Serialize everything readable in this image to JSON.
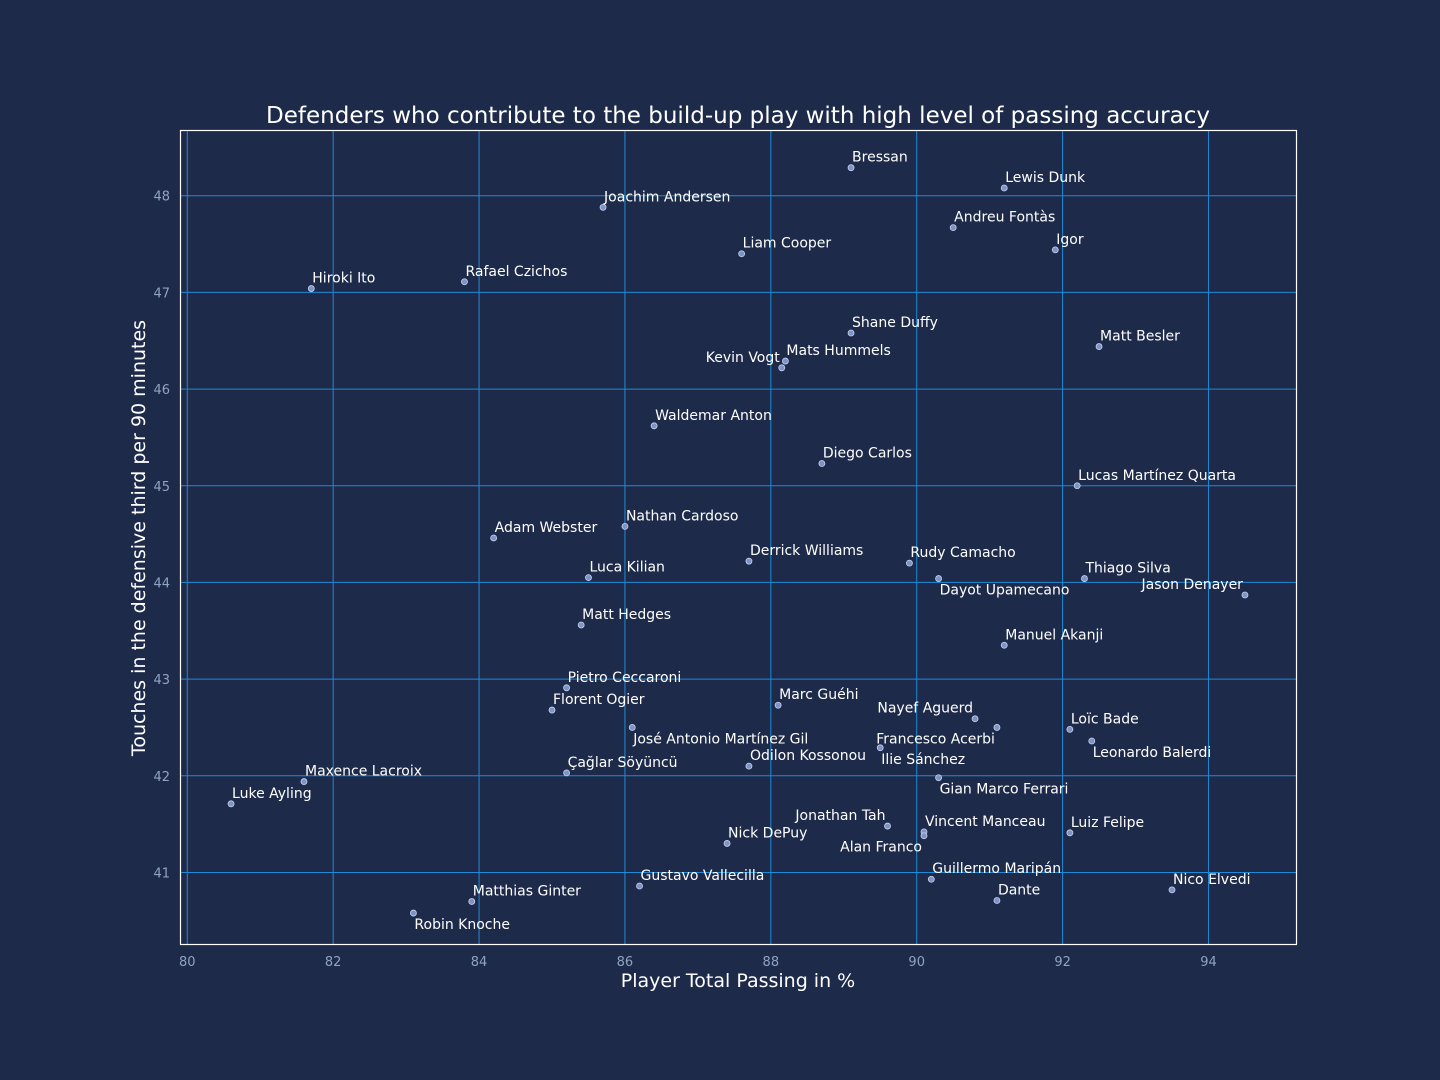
{
  "chart_data": {
    "type": "scatter",
    "title": "Defenders who contribute to the build-up play with high level of passing accuracy",
    "xlabel": "Player Total Passing in %",
    "ylabel": "Touches in the defensive third per 90 minutes",
    "xlim": [
      79.9,
      95.2
    ],
    "ylim": [
      40.26,
      48.68
    ],
    "grid": true,
    "xticks": [
      80,
      82,
      84,
      86,
      88,
      90,
      92,
      94
    ],
    "yticks": [
      41,
      42,
      43,
      44,
      45,
      46,
      47,
      48
    ],
    "colors": {
      "background": "#1d2a4a",
      "grid": "#1f8ad8",
      "point": "#7e93c7",
      "text": "#ffffff",
      "tick": "#8fa3c3"
    },
    "points": [
      {
        "name": "Bressan",
        "x": 89.1,
        "y": 48.29
      },
      {
        "name": "Lewis Dunk",
        "x": 91.2,
        "y": 48.08
      },
      {
        "name": "Joachim Andersen",
        "x": 85.7,
        "y": 47.88
      },
      {
        "name": "Andreu Fontàs",
        "x": 90.5,
        "y": 47.67
      },
      {
        "name": "Igor",
        "x": 91.9,
        "y": 47.44
      },
      {
        "name": "Liam Cooper",
        "x": 87.6,
        "y": 47.4
      },
      {
        "name": "Rafael Czichos",
        "x": 83.8,
        "y": 47.11
      },
      {
        "name": "Hiroki Ito",
        "x": 81.7,
        "y": 47.04
      },
      {
        "name": "Shane Duffy",
        "x": 89.1,
        "y": 46.58
      },
      {
        "name": "Matt Besler",
        "x": 92.5,
        "y": 46.44
      },
      {
        "name": "Mats Hummels",
        "x": 88.2,
        "y": 46.29
      },
      {
        "name": "Kevin Vogt",
        "x": 88.15,
        "y": 46.22,
        "anchor": "end"
      },
      {
        "name": "Waldemar Anton",
        "x": 86.4,
        "y": 45.62
      },
      {
        "name": "Diego Carlos",
        "x": 88.7,
        "y": 45.23
      },
      {
        "name": "Lucas Martínez Quarta",
        "x": 92.2,
        "y": 45.0
      },
      {
        "name": "Nathan Cardoso",
        "x": 86.0,
        "y": 44.58
      },
      {
        "name": "Adam Webster",
        "x": 84.2,
        "y": 44.46
      },
      {
        "name": "Derrick Williams",
        "x": 87.7,
        "y": 44.22
      },
      {
        "name": "Rudy Camacho",
        "x": 89.9,
        "y": 44.2
      },
      {
        "name": "Luca Kilian",
        "x": 85.5,
        "y": 44.05
      },
      {
        "name": "Dayot Upamecano",
        "x": 90.3,
        "y": 44.04,
        "below": true
      },
      {
        "name": "Thiago Silva",
        "x": 92.3,
        "y": 44.04
      },
      {
        "name": "Jason Denayer",
        "x": 94.5,
        "y": 43.87,
        "anchor": "end"
      },
      {
        "name": "Matt Hedges",
        "x": 85.4,
        "y": 43.56
      },
      {
        "name": "Manuel Akanji",
        "x": 91.2,
        "y": 43.35
      },
      {
        "name": "Pietro Ceccaroni",
        "x": 85.2,
        "y": 42.91
      },
      {
        "name": "Marc Guéhi",
        "x": 88.1,
        "y": 42.73
      },
      {
        "name": "Florent Ogier",
        "x": 85.0,
        "y": 42.68
      },
      {
        "name": "Nayef Aguerd",
        "x": 90.8,
        "y": 42.59,
        "anchor": "end"
      },
      {
        "name": "José Antonio Martínez Gil",
        "x": 86.1,
        "y": 42.5,
        "below": true
      },
      {
        "name": "Francesco Acerbi",
        "x": 91.1,
        "y": 42.5,
        "anchor": "end",
        "below": true
      },
      {
        "name": "Loïc Bade",
        "x": 92.1,
        "y": 42.48
      },
      {
        "name": "Leonardo Balerdi",
        "x": 92.4,
        "y": 42.36,
        "below": true
      },
      {
        "name": "Ilie Sánchez",
        "x": 89.5,
        "y": 42.29,
        "below": true
      },
      {
        "name": "Odilon Kossonou",
        "x": 87.7,
        "y": 42.1
      },
      {
        "name": "Çağlar Söyüncü",
        "x": 85.2,
        "y": 42.03
      },
      {
        "name": "Gian Marco Ferrari",
        "x": 90.3,
        "y": 41.98,
        "below": true
      },
      {
        "name": "Maxence Lacroix",
        "x": 81.6,
        "y": 41.94
      },
      {
        "name": "Luke Ayling",
        "x": 80.6,
        "y": 41.71
      },
      {
        "name": "Jonathan Tah",
        "x": 89.6,
        "y": 41.48,
        "anchor": "end"
      },
      {
        "name": "Vincent Manceau",
        "x": 90.1,
        "y": 41.42
      },
      {
        "name": "Alan Franco",
        "x": 90.1,
        "y": 41.38,
        "anchor": "end",
        "below": true
      },
      {
        "name": "Luiz Felipe",
        "x": 92.1,
        "y": 41.41
      },
      {
        "name": "Nick DePuy",
        "x": 87.4,
        "y": 41.3
      },
      {
        "name": "Guillermo Maripán",
        "x": 90.2,
        "y": 40.93
      },
      {
        "name": "Gustavo Vallecilla",
        "x": 86.2,
        "y": 40.86
      },
      {
        "name": "Nico Elvedi",
        "x": 93.5,
        "y": 40.82
      },
      {
        "name": "Dante",
        "x": 91.1,
        "y": 40.71
      },
      {
        "name": "Matthias Ginter",
        "x": 83.9,
        "y": 40.7
      },
      {
        "name": "Robin Knoche",
        "x": 83.1,
        "y": 40.58,
        "below": true
      }
    ]
  }
}
